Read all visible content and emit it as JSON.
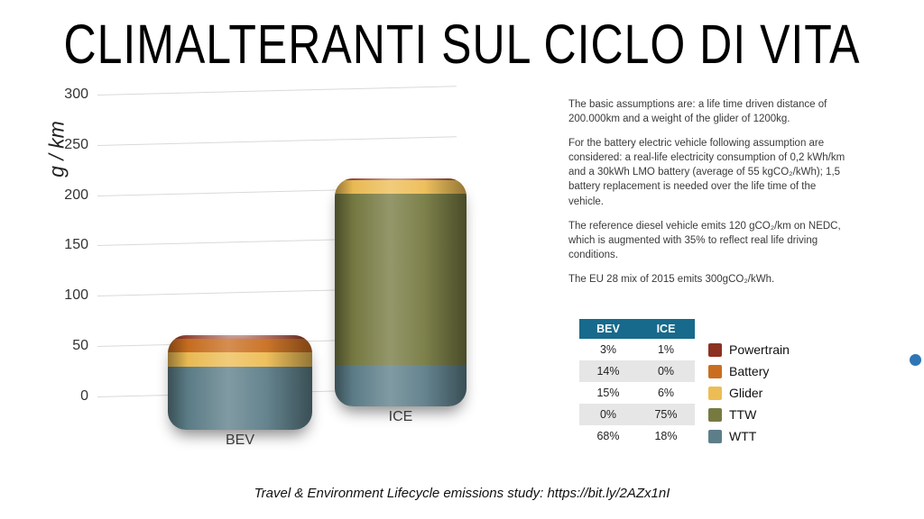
{
  "title": "CLIMALTERANTI SUL CICLO DI VITA",
  "chart_data": {
    "type": "bar",
    "stacked": true,
    "title": "CLIMALTERANTI SUL CICLO DI VITA",
    "ylabel": "g / km",
    "xlabel": "",
    "ylim": [
      0,
      300
    ],
    "yticks": [
      0,
      50,
      100,
      150,
      200,
      250,
      300
    ],
    "grid": true,
    "legend_position": "right",
    "categories": [
      "BEV",
      "ICE"
    ],
    "series": [
      {
        "name": "WTT",
        "color": "#5d7e89",
        "values": [
          61,
          40
        ]
      },
      {
        "name": "TTW",
        "color": "#767a41",
        "values": [
          0,
          165
        ]
      },
      {
        "name": "Glider",
        "color": "#edbd55",
        "values": [
          14,
          13
        ]
      },
      {
        "name": "Battery",
        "color": "#c96e20",
        "values": [
          13,
          0
        ]
      },
      {
        "name": "Powertrain",
        "color": "#8c3120",
        "values": [
          3,
          2
        ]
      }
    ],
    "totals_g_per_km": [
      91,
      220
    ]
  },
  "assumptions": {
    "paragraphs": [
      "The basic assumptions are: a life time driven distance of 200.000km and a weight of the glider of 1200kg.",
      "For the battery electric vehicle following assumption are considered: a real-life electricity consumption of 0,2 kWh/km and a 30kWh LMO battery (average of 55 kgCO₂/kWh); 1,5 battery replacement is needed over the life time of the vehicle.",
      "The reference diesel vehicle emits 120 gCO₂/km on NEDC, which is augmented with 35% to reflect real life driving conditions.",
      "The EU 28 mix of 2015 emits 300gCO₂/kWh."
    ]
  },
  "table": {
    "headers": [
      "BEV",
      "ICE"
    ],
    "header_bg": "#176a8c",
    "alt_row_bg": "#e6e6e6",
    "rows": [
      {
        "bev": "3%",
        "ice": "1%",
        "label": "Powertrain",
        "color": "#8c3120"
      },
      {
        "bev": "14%",
        "ice": "0%",
        "label": "Battery",
        "color": "#c96e20"
      },
      {
        "bev": "15%",
        "ice": "6%",
        "label": "Glider",
        "color": "#edbd55"
      },
      {
        "bev": "0%",
        "ice": "75%",
        "label": "TTW",
        "color": "#767a41"
      },
      {
        "bev": "68%",
        "ice": "18%",
        "label": "WTT",
        "color": "#5d7e89"
      }
    ]
  },
  "footer": "Travel & Environment Lifecycle emissions study: https://bit.ly/2AZx1nI",
  "accent_dot_color": "#2e75b6"
}
